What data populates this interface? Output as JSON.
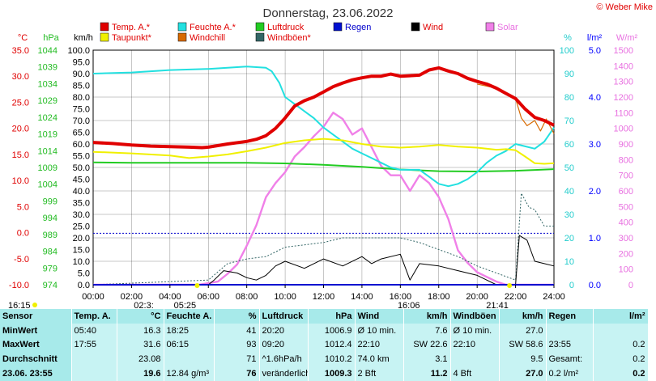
{
  "chart_data": {
    "type": "line",
    "title": "Donnerstag, 23.06.2022",
    "x_ticks": [
      "00:00",
      "02:00",
      "04:00",
      "06:00",
      "08:00",
      "10:00",
      "12:00",
      "14:00",
      "16:00",
      "18:00",
      "20:00",
      "22:00",
      "24:00"
    ],
    "axes": {
      "temp": {
        "label": "°C",
        "ticks": [
          "35.0",
          "30.0",
          "25.0",
          "20.0",
          "15.0",
          "10.0",
          "5.0",
          "0.0",
          "-5.0",
          "-10.0"
        ],
        "ylim": [
          -10,
          35
        ]
      },
      "pressure": {
        "label": "hPa",
        "ticks": [
          "1044",
          "1039",
          "1034",
          "1029",
          "1024",
          "1019",
          "1014",
          "1009",
          "1004",
          "999",
          "994",
          "989",
          "984",
          "979",
          "974"
        ],
        "ylim": [
          974,
          1044
        ]
      },
      "wind": {
        "label": "km/h",
        "ticks": [
          "100.0",
          "95.0",
          "90.0",
          "85.0",
          "80.0",
          "75.0",
          "70.0",
          "65.0",
          "60.0",
          "55.0",
          "50.0",
          "45.0",
          "40.0",
          "35.0",
          "30.0",
          "25.0",
          "20.0",
          "15.0",
          "10.0",
          "5.0",
          "0.0"
        ],
        "ylim": [
          0,
          100
        ]
      },
      "humidity": {
        "label": "%",
        "ticks": [
          "100",
          "90",
          "80",
          "70",
          "60",
          "50",
          "40",
          "30",
          "20",
          "10",
          "0"
        ],
        "ylim": [
          0,
          100
        ]
      },
      "rain": {
        "label": "l/m²",
        "ticks": [
          "5.0",
          "4.0",
          "3.0",
          "2.0",
          "1.0",
          "0.0"
        ],
        "ylim": [
          0,
          5
        ]
      },
      "solar": {
        "label": "W/m²",
        "ticks": [
          "1500",
          "1400",
          "1300",
          "1200",
          "1100",
          "1000",
          "900",
          "800",
          "700",
          "600",
          "500",
          "400",
          "300",
          "200",
          "100",
          "0"
        ],
        "ylim": [
          0,
          1500
        ]
      }
    },
    "legend": [
      {
        "name": "Temp. A.*",
        "color": "#e00000"
      },
      {
        "name": "Feuchte A.*",
        "color": "#22e0e0"
      },
      {
        "name": "Luftdruck",
        "color": "#22cc22"
      },
      {
        "name": "Regen",
        "color": "#0010d0"
      },
      {
        "name": "Wind",
        "color": "#000000"
      },
      {
        "name": "Solar",
        "color": "#f080e8"
      },
      {
        "name": "Taupunkt*",
        "color": "#f0f000"
      },
      {
        "name": "Windchill",
        "color": "#d86a00"
      },
      {
        "name": "Windböen*",
        "color": "#336666"
      }
    ],
    "series": [
      {
        "name": "Temp. A.*",
        "axis": "temp",
        "x": [
          0,
          1,
          2,
          3,
          4,
          5,
          5.67,
          6,
          7,
          8,
          8.5,
          9,
          9.5,
          10,
          10.5,
          11,
          11.5,
          12,
          12.5,
          13,
          13.5,
          14,
          14.5,
          15,
          15.5,
          16,
          16.5,
          17,
          17.5,
          18,
          18.5,
          19,
          19.5,
          20,
          20.5,
          21,
          21.5,
          22,
          22.5,
          23,
          23.5,
          24
        ],
        "y": [
          17.3,
          17.1,
          16.8,
          16.6,
          16.5,
          16.4,
          16.3,
          16.4,
          17.0,
          17.5,
          17.9,
          18.6,
          20,
          22,
          24.3,
          25.3,
          26.0,
          27.0,
          28.0,
          28.7,
          29.3,
          29.7,
          30.0,
          30.0,
          30.4,
          30.0,
          30.1,
          30.2,
          31.2,
          31.6,
          31.0,
          30.5,
          29.6,
          29.0,
          28.5,
          27.7,
          26.7,
          25.7,
          23.7,
          22.1,
          21.5,
          20.6
        ]
      },
      {
        "name": "Feuchte A.*",
        "axis": "humidity",
        "x": [
          0,
          2,
          4,
          6,
          7,
          8,
          9,
          9.3,
          9.7,
          10,
          10.5,
          11,
          11.5,
          12,
          12.5,
          13,
          13.5,
          14,
          14.5,
          15,
          15.5,
          16,
          16.5,
          17,
          17.5,
          18,
          18.5,
          19,
          19.5,
          20,
          20.5,
          21,
          21.5,
          22,
          22.5,
          23,
          23.5,
          24
        ],
        "y": [
          90,
          90.5,
          91.5,
          92,
          92.5,
          93,
          92.5,
          91,
          86,
          80,
          77,
          74,
          71,
          67,
          64,
          61,
          58,
          56,
          54,
          52,
          50,
          49,
          49,
          49,
          46,
          43,
          42,
          43,
          45,
          48,
          52,
          55,
          57,
          60,
          59,
          58,
          61,
          67
        ]
      },
      {
        "name": "Luftdruck",
        "axis": "pressure",
        "x": [
          0,
          2,
          4,
          6,
          8,
          10,
          12,
          14,
          16,
          18,
          20,
          22,
          24
        ],
        "y": [
          1010.5,
          1010.4,
          1010.4,
          1010.4,
          1010.4,
          1010.2,
          1009.8,
          1009.2,
          1008.4,
          1007.9,
          1007.8,
          1008.0,
          1008.5
        ]
      },
      {
        "name": "Taupunkt*",
        "axis": "temp",
        "x": [
          0,
          2,
          4,
          5,
          6,
          7,
          8,
          9,
          10,
          11,
          12,
          13,
          14,
          15,
          16,
          17,
          18,
          19,
          20,
          21,
          21.5,
          22,
          22.5,
          23,
          23.5,
          24
        ],
        "y": [
          15.5,
          15.2,
          14.8,
          14.3,
          14.6,
          15.0,
          15.6,
          16.3,
          17.2,
          17.7,
          18.0,
          17.7,
          17.0,
          16.5,
          16.3,
          16.5,
          16.8,
          16.5,
          16.3,
          15.9,
          16.0,
          15.8,
          14.6,
          13.3,
          13.2,
          13.3
        ]
      },
      {
        "name": "Windchill",
        "axis": "temp",
        "x": [
          20,
          21,
          22,
          22.3,
          22.6,
          23,
          23.3,
          23.6,
          24
        ],
        "y": [
          28.5,
          27.7,
          25.7,
          22,
          20.5,
          21.5,
          19.5,
          21.8,
          19.0
        ]
      },
      {
        "name": "Solar",
        "axis": "solar",
        "x": [
          0,
          5.5,
          6.5,
          7,
          7.5,
          8,
          8.5,
          9,
          9.5,
          10,
          10.5,
          11,
          11.5,
          12,
          12.5,
          13,
          13.5,
          14,
          14.5,
          15,
          15.5,
          16,
          16.5,
          17,
          17.5,
          18,
          18.5,
          19,
          19.5,
          20,
          20.5,
          21,
          21.5,
          22,
          24
        ],
        "y": [
          0,
          0,
          20,
          70,
          130,
          250,
          380,
          560,
          650,
          720,
          820,
          880,
          950,
          1010,
          1100,
          1060,
          960,
          1000,
          880,
          760,
          700,
          700,
          600,
          700,
          650,
          560,
          420,
          220,
          140,
          80,
          50,
          20,
          0,
          0,
          0
        ]
      },
      {
        "name": "Wind",
        "axis": "wind",
        "x": [
          0,
          6,
          6.3,
          6.8,
          7.5,
          8,
          8.5,
          9,
          9.5,
          10,
          11,
          12,
          13,
          14,
          14.5,
          15,
          16,
          16.5,
          17,
          18,
          19,
          20,
          21,
          22,
          22.2,
          22.6,
          23,
          23.5,
          24
        ],
        "y": [
          0,
          0,
          2,
          6,
          5,
          3,
          2,
          4,
          8,
          10,
          7,
          11,
          8,
          12,
          9,
          11,
          13,
          2,
          9,
          8,
          6,
          4,
          0,
          0,
          21,
          19,
          10,
          9,
          8
        ]
      },
      {
        "name": "Windböen*",
        "axis": "wind",
        "x": [
          0,
          6,
          7,
          8,
          9,
          10,
          11,
          12,
          13,
          14,
          15,
          16,
          17,
          18,
          19,
          20,
          21,
          22,
          22.3,
          22.7,
          23,
          23.5,
          24
        ],
        "y": [
          0,
          2,
          9,
          11,
          12,
          16,
          17,
          18,
          20,
          20,
          20,
          20,
          18,
          15,
          12,
          8,
          5,
          2,
          39,
          33,
          32,
          25,
          25
        ]
      },
      {
        "name": "Regen",
        "axis": "rain",
        "x": [
          0,
          24
        ],
        "y": [
          0,
          0
        ]
      }
    ],
    "markers": {
      "sunrise": "05:25",
      "sunset": "21:41",
      "other_labels": [
        "16:15",
        "02:3:",
        "16:06"
      ]
    }
  },
  "table": {
    "headers": {
      "sensor": "Sensor",
      "temp": "Temp. A.",
      "temp_unit": "°C",
      "hum": "Feuchte A.",
      "hum_unit": "%",
      "press": "Luftdruck",
      "press_unit": "hPa",
      "wind": "Wind",
      "wind_unit": "km/h",
      "gust": "Windböen",
      "gust_unit": "km/h",
      "rain": "Regen",
      "rain_unit": "l/m²"
    },
    "rows": [
      {
        "label": "MinWert",
        "temp_time": "05:40",
        "temp_val": "16.3",
        "hum_time": "18:25",
        "hum_val": "41",
        "press_time": "20:20",
        "press_val": "1006.9",
        "wind_a": "Ø 10 min.",
        "wind_val": "7.6",
        "gust_a": "Ø 10 min.",
        "gust_val": "27.0",
        "rain_a": "",
        "rain_val": ""
      },
      {
        "label": "MaxWert",
        "temp_time": "17:55",
        "temp_val": "31.6",
        "hum_time": "06:15",
        "hum_val": "93",
        "press_time": "09:20",
        "press_val": "1012.4",
        "wind_a": "22:10",
        "wind_b": "SW 22.6",
        "wind_val": "",
        "gust_a": "22:10",
        "gust_b": "SW 58.6",
        "gust_val": "",
        "rain_a": "23:55",
        "rain_val": "0.2"
      },
      {
        "label": "Durchschnitt",
        "temp_time": "",
        "temp_val": "23.08",
        "hum_time": "",
        "hum_val": "71",
        "press_time": "^1.6hPa/h",
        "press_val": "1010.2",
        "wind_a": "74.0 km",
        "wind_val": "3.1",
        "gust_a": "",
        "gust_val": "9.5",
        "rain_a": "Gesamt:",
        "rain_val": "0.2"
      },
      {
        "label": "23.06. 23:55",
        "temp_time": "",
        "temp_val": "19.6",
        "hum_time": "12.84 g/m³",
        "hum_val": "76",
        "press_time": "veränderlich",
        "press_val": "1009.3",
        "wind_a": "2 Bft",
        "wind_val": "11.2",
        "gust_a": "4 Bft",
        "gust_val": "27.0",
        "rain_a": "0.2 l/m²",
        "rain_val": "0.2"
      }
    ]
  },
  "brand": "© Weber Mike",
  "colors": {
    "temp": "#e00000",
    "humidity": "#22e0e0",
    "pressure": "#22cc22",
    "dew": "#f0f000",
    "windchill": "#d86a00",
    "solar": "#f080e8",
    "wind": "#000000",
    "gust": "#336666",
    "rain": "#0010d0",
    "rain_axis": "#0000ff",
    "table_header": "#a7eaea",
    "table_row": "#c7f3f3"
  }
}
